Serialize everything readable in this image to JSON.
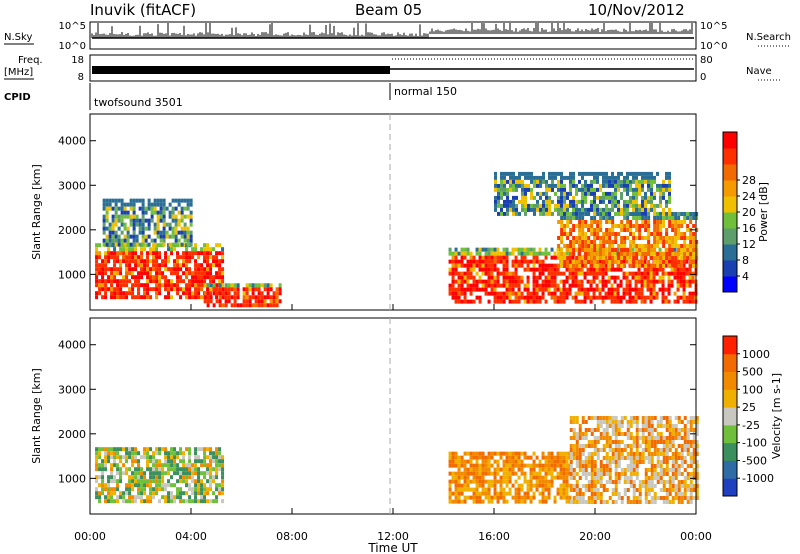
{
  "header": {
    "station": "Inuvik (fitACF)",
    "beam": "Beam 05",
    "date": "10/Nov/2012"
  },
  "summary_panels": {
    "nsky_label": "N.Sky",
    "nsky_ticks": [
      "10^5",
      "10^0"
    ],
    "nsearch_label": "N.Search",
    "nsearch_ticks": [
      "10^5",
      "10^0"
    ],
    "freq_label": "Freq.",
    "freq_unit": "[MHz]",
    "freq_ticks": [
      "18",
      "8"
    ],
    "nave_label": "Nave",
    "nave_ticks": [
      "80",
      "0"
    ],
    "cpid_label": "CPID",
    "cpid_segments": [
      {
        "name": "twofsound 3501",
        "start_hour": 0
      },
      {
        "name": "normal 150",
        "start_hour": 12
      }
    ]
  },
  "chart_data": [
    {
      "type": "heatmap",
      "title": "",
      "xlabel": "",
      "ylabel": "Slant Range [km]",
      "xlim": [
        0,
        24
      ],
      "ylim": [
        200,
        4600
      ],
      "yticks": [
        1000,
        2000,
        3000,
        4000
      ],
      "colorbar": {
        "label": "Power [dB]",
        "ticks": [
          "4",
          "8",
          "12",
          "16",
          "20",
          "24",
          "28"
        ],
        "colors": [
          "#0000ff",
          "#1a3fb0",
          "#2a6e96",
          "#5e9e6a",
          "#6fbf3a",
          "#f0c000",
          "#f59a00",
          "#f26b00",
          "#ff3000",
          "#ff0000"
        ]
      },
      "echo_regions": [
        {
          "t_start": 0.2,
          "t_end": 5.2,
          "range_min": 500,
          "range_max": 1700,
          "level": "high"
        },
        {
          "t_start": 4.5,
          "t_end": 7.5,
          "range_min": 300,
          "range_max": 800,
          "level": "high"
        },
        {
          "t_start": 14.2,
          "t_end": 24,
          "range_min": 400,
          "range_max": 1600,
          "level": "high"
        },
        {
          "t_start": 18.5,
          "t_end": 24,
          "range_min": 1200,
          "range_max": 2400,
          "level": "medium"
        },
        {
          "t_start": 0.5,
          "t_end": 4,
          "range_min": 1700,
          "range_max": 2700,
          "level": "low"
        },
        {
          "t_start": 16,
          "t_end": 23,
          "range_min": 2400,
          "range_max": 3300,
          "level": "low"
        }
      ]
    },
    {
      "type": "heatmap",
      "title": "",
      "xlabel": "Time UT",
      "ylabel": "Slant Range [km]",
      "xlim": [
        0,
        24
      ],
      "ylim": [
        200,
        4600
      ],
      "xticks": [
        "00:00",
        "04:00",
        "08:00",
        "12:00",
        "16:00",
        "20:00",
        "00:00"
      ],
      "yticks": [
        1000,
        2000,
        3000,
        4000
      ],
      "colorbar": {
        "label": "Velocity [m s-1]",
        "ticks": [
          "1000",
          "500",
          "100",
          "25",
          "-25",
          "-100",
          "-500",
          "-1000"
        ],
        "colors": [
          "#2040c0",
          "#2f6ca6",
          "#3a8f5c",
          "#6fbf3a",
          "#c8c8c0",
          "#f0b000",
          "#f28a00",
          "#f26b00",
          "#ff2000"
        ]
      },
      "echo_regions": [
        {
          "t_start": 0.2,
          "t_end": 5.2,
          "range_min": 500,
          "range_max": 1700,
          "level": "mixed-green-orange"
        },
        {
          "t_start": 14.2,
          "t_end": 19,
          "range_min": 500,
          "range_max": 1600,
          "level": "orange"
        },
        {
          "t_start": 19,
          "t_end": 24,
          "range_min": 500,
          "range_max": 2400,
          "level": "orange-gray"
        }
      ]
    }
  ]
}
